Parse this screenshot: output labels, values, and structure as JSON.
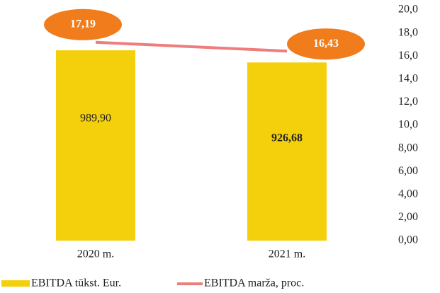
{
  "chart_data": {
    "type": "bar_line",
    "categories": [
      "2020 m.",
      "2021 m."
    ],
    "series": [
      {
        "name": "EBITDA tūkst. Eur.",
        "type": "bar",
        "color": "#f4cf0c",
        "values": [
          989.9,
          926.68
        ],
        "value_labels": [
          "989,90",
          "926,68"
        ]
      },
      {
        "name": "EBITDA marža, proc.",
        "type": "line",
        "axis": "y2",
        "color": "#ee7d7d",
        "label_color": "#f07c1c",
        "values": [
          17.19,
          16.43
        ],
        "value_labels": [
          "17,19",
          "16,43"
        ]
      }
    ],
    "ylim": [
      0,
      1200
    ],
    "y2lim": [
      0,
      20
    ],
    "y2ticks": [
      {
        "value": 0,
        "label": "0,00"
      },
      {
        "value": 2,
        "label": "2,00"
      },
      {
        "value": 4,
        "label": "4,00"
      },
      {
        "value": 6,
        "label": "6,00"
      },
      {
        "value": 8,
        "label": "8,00"
      },
      {
        "value": 10,
        "label": "10,0"
      },
      {
        "value": 12,
        "label": "12,0"
      },
      {
        "value": 14,
        "label": "14,0"
      },
      {
        "value": 16,
        "label": "16,0"
      },
      {
        "value": 18,
        "label": "18,0"
      },
      {
        "value": 20,
        "label": "20,0"
      }
    ]
  }
}
